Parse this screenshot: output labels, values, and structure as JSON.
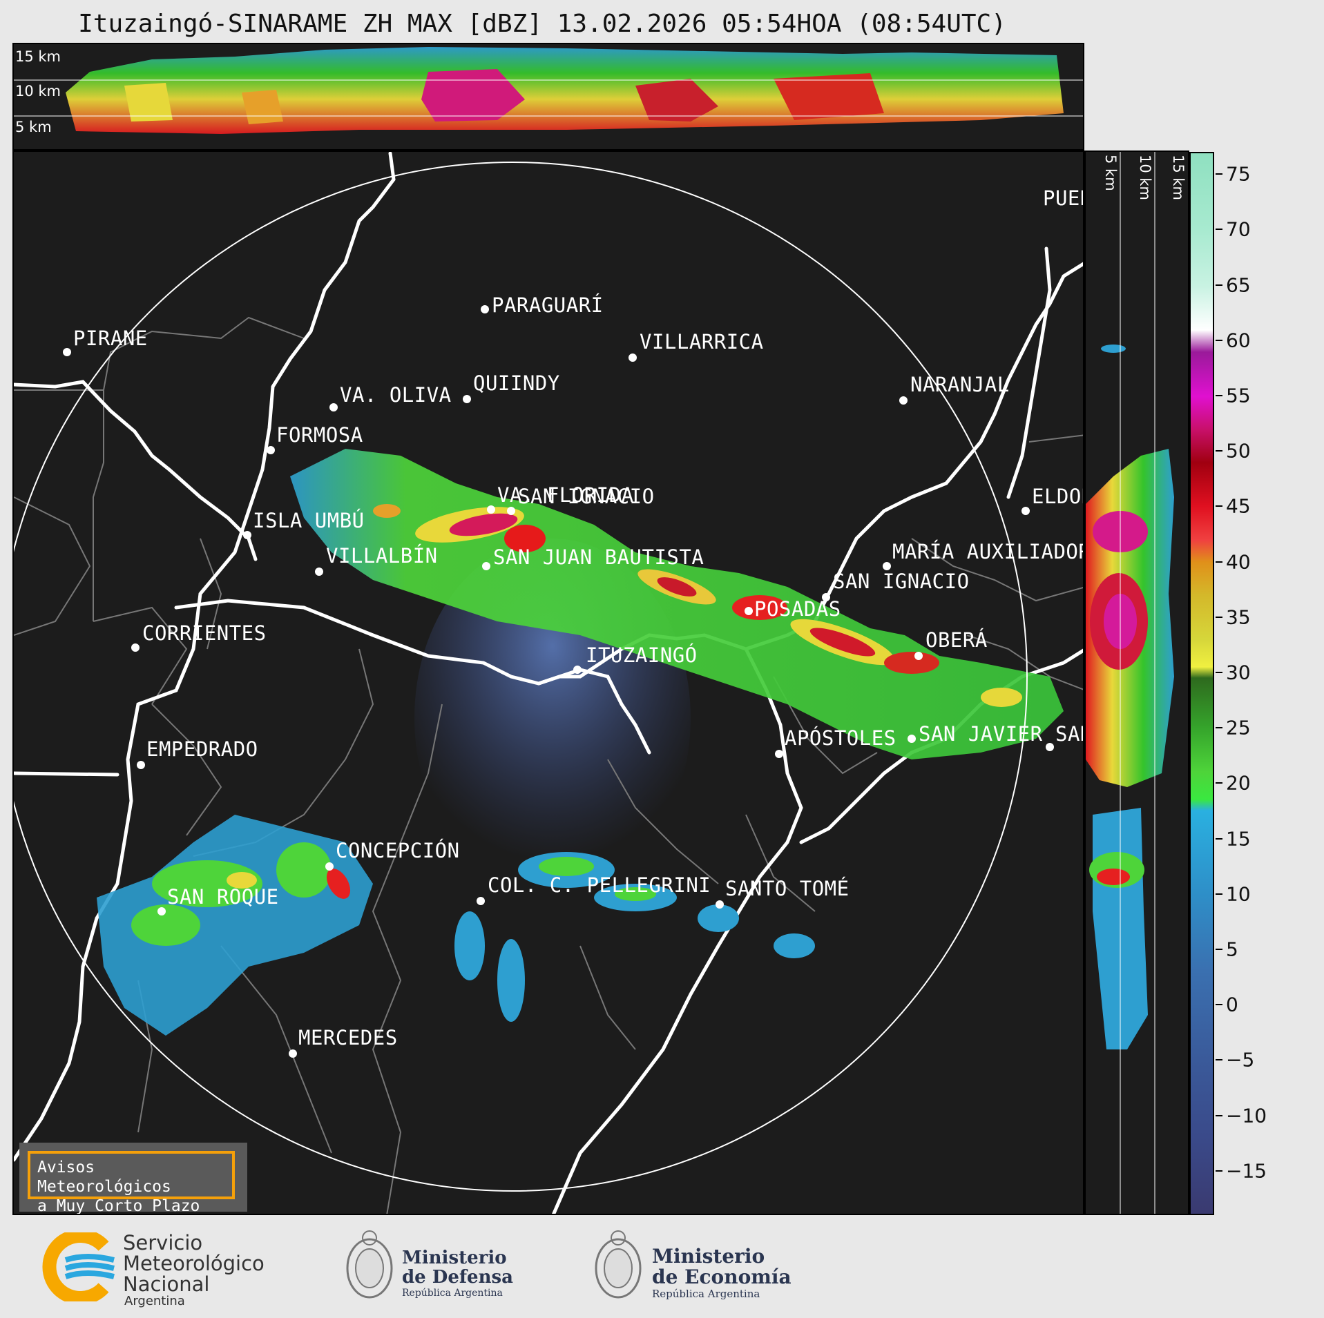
{
  "title": "Ituzaingó-SINARAME ZH MAX [dBZ] 13.02.2026 05:54HOA (08:54UTC)",
  "top_panel": {
    "km_labels": [
      "15 km",
      "10 km",
      "5 km"
    ]
  },
  "side_panel": {
    "km_labels": [
      "5 km",
      "10 km",
      "15 km"
    ]
  },
  "cities": [
    {
      "name": "PIRANE"
    },
    {
      "name": "PARAGUARÍ"
    },
    {
      "name": "VILLARRICA"
    },
    {
      "name": "VA. OLIVA"
    },
    {
      "name": "QUIINDY"
    },
    {
      "name": "NARANJAL"
    },
    {
      "name": "FORMOSA"
    },
    {
      "name": "VA. FLORIDA"
    },
    {
      "name": "ELDOR"
    },
    {
      "name": "MARÍA AUXILIADOR"
    },
    {
      "name": "SAN JUAN BAUTISTA"
    },
    {
      "name": "SAN IGNACIO"
    },
    {
      "name": "ISLA UMBÚ"
    },
    {
      "name": "VILLALBÍN"
    },
    {
      "name": "SAN IGNACIO"
    },
    {
      "name": "POSADAS"
    },
    {
      "name": "CORRIENTES"
    },
    {
      "name": "OBERÁ"
    },
    {
      "name": "ITUZAINGÓ"
    },
    {
      "name": "EMPEDRADO"
    },
    {
      "name": "APÓSTOLES"
    },
    {
      "name": "SAN JAVIER"
    },
    {
      "name": "SAN"
    },
    {
      "name": "CONCEPCIÓN"
    },
    {
      "name": "COL. C. PELLEGRINI"
    },
    {
      "name": "SANTO TOMÉ"
    },
    {
      "name": "SAN ROQUE"
    },
    {
      "name": "MERCEDES"
    },
    {
      "name": "PUER"
    }
  ],
  "colorbar": {
    "unit": "dBZ",
    "min": -19,
    "max": 77,
    "ticks": [
      "75",
      "70",
      "65",
      "60",
      "55",
      "50",
      "45",
      "40",
      "35",
      "30",
      "25",
      "20",
      "15",
      "10",
      "5",
      "0",
      "−5",
      "−10",
      "−15"
    ]
  },
  "warning_box": {
    "line1": "Avisos Meteorológicos",
    "line2": "a Muy Corto Plazo"
  },
  "footer": {
    "smn": {
      "line1": "Servicio",
      "line2": "Meteorológico",
      "line3": "Nacional",
      "line4": "Argentina"
    },
    "defensa": {
      "line1": "Ministerio",
      "line2": "de Defensa",
      "line3": "República Argentina"
    },
    "economia": {
      "line1": "Ministerio",
      "line2": "de Economía",
      "line3": "República Argentina"
    }
  },
  "colors": {
    "background": "#1c1c1c",
    "accent_warning": "#f5a00a",
    "smn_blue": "#2aa7df",
    "smn_orange": "#f7a800"
  }
}
